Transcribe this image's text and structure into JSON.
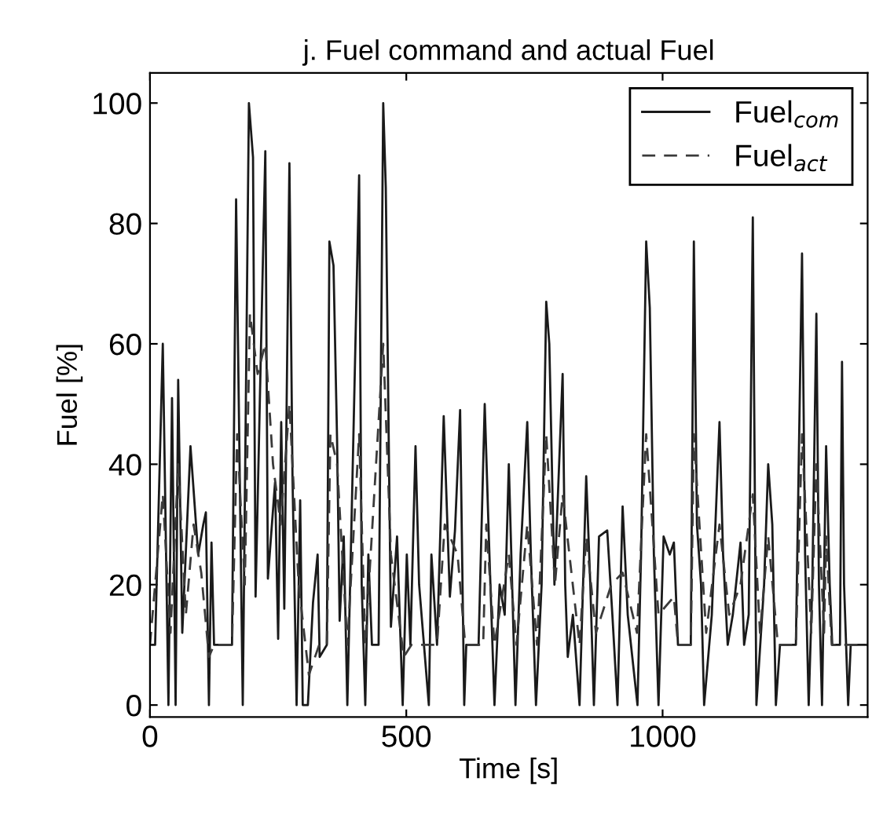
{
  "chart_data": {
    "type": "line",
    "title": "j. Fuel command and actual Fuel",
    "xlabel": "Time [s]",
    "ylabel": "Fuel [%]",
    "xlim": [
      0,
      1400
    ],
    "ylim": [
      -2,
      105
    ],
    "xticks": [
      0,
      500,
      1000
    ],
    "yticks": [
      0,
      20,
      40,
      60,
      80,
      100
    ],
    "grid": false,
    "legend": "top right",
    "marker": "none",
    "series": [
      {
        "name": "Fuel$_{com}$",
        "color": "#1a1a1a",
        "line_style": "solid",
        "x": [
          0,
          10,
          25,
          36,
          43,
          50,
          55,
          63,
          79,
          94,
          104,
          109,
          115,
          120,
          125,
          160,
          168,
          181,
          193,
          201,
          206,
          218,
          225,
          230,
          244,
          250,
          256,
          262,
          272,
          278,
          286,
          293,
          298,
          308,
          318,
          327,
          331,
          345,
          350,
          358,
          365,
          370,
          378,
          385,
          392,
          408,
          413,
          420,
          426,
          433,
          446,
          455,
          460,
          470,
          482,
          493,
          501,
          508,
          518,
          525,
          544,
          549,
          560,
          573,
          585,
          595,
          605,
          613,
          617,
          641,
          653,
          661,
          672,
          682,
          692,
          700,
          713,
          723,
          736,
          743,
          753,
          764,
          773,
          779,
          789,
          805,
          810,
          815,
          825,
          838,
          851,
          859,
          866,
          876,
          892,
          902,
          912,
          922,
          932,
          951,
          958,
          968,
          975,
          983,
          992,
          1002,
          1014,
          1022,
          1030,
          1055,
          1061,
          1067,
          1075,
          1081,
          1096,
          1111,
          1118,
          1127,
          1137,
          1152,
          1159,
          1168,
          1176,
          1183,
          1198,
          1206,
          1214,
          1221,
          1229,
          1260,
          1272,
          1278,
          1285,
          1292,
          1300,
          1305,
          1311,
          1319,
          1326,
          1331,
          1346,
          1350,
          1354,
          1362,
          1367,
          1372,
          1400
        ],
        "values": [
          10,
          10,
          60,
          0,
          51,
          0,
          54,
          12,
          43,
          25,
          30,
          32,
          0,
          27,
          10,
          10,
          84,
          0,
          100,
          91,
          18,
          65,
          92,
          21,
          37,
          11,
          47,
          16,
          90,
          38,
          0,
          34,
          0,
          0,
          17,
          25,
          8,
          10,
          77,
          73,
          44,
          14,
          28,
          0,
          26,
          88,
          20,
          0,
          25,
          10,
          10,
          100,
          86,
          13,
          28,
          0,
          25,
          10,
          43,
          20,
          0,
          25,
          10,
          48,
          18,
          29,
          49,
          0,
          10,
          10,
          50,
          28,
          0,
          20,
          15,
          40,
          0,
          25,
          47,
          25,
          0,
          20,
          67,
          60,
          20,
          55,
          20,
          8,
          15,
          0,
          38,
          20,
          0,
          28,
          29,
          15,
          0,
          33,
          15,
          0,
          25,
          77,
          66,
          25,
          0,
          28,
          25,
          27,
          10,
          10,
          77,
          30,
          20,
          0,
          15,
          47,
          25,
          10,
          15,
          27,
          10,
          15,
          81,
          0,
          20,
          40,
          30,
          0,
          10,
          10,
          75,
          25,
          0,
          20,
          65,
          20,
          0,
          43,
          20,
          10,
          10,
          57,
          20,
          0,
          10,
          10,
          10
        ]
      },
      {
        "name": "Fuel$_{act}$",
        "color": "#3a3a3a",
        "line_style": "dashed",
        "x": [
          0,
          25,
          40,
          55,
          70,
          85,
          100,
          115,
          125,
          160,
          170,
          185,
          195,
          210,
          225,
          240,
          255,
          272,
          290,
          310,
          330,
          345,
          352,
          365,
          385,
          408,
          420,
          455,
          470,
          495,
          510,
          560,
          575,
          600,
          615,
          650,
          656,
          672,
          700,
          715,
          736,
          755,
          773,
          790,
          805,
          838,
          851,
          870,
          900,
          922,
          950,
          968,
          992,
          1022,
          1030,
          1055,
          1061,
          1085,
          1111,
          1130,
          1152,
          1176,
          1190,
          1206,
          1225,
          1260,
          1272,
          1290,
          1300,
          1315,
          1319,
          1330,
          1357,
          1370,
          1400
        ],
        "values": [
          10,
          35,
          12,
          40,
          15,
          30,
          22,
          8,
          10,
          10,
          45,
          20,
          65,
          55,
          60,
          40,
          30,
          50,
          20,
          5,
          10,
          10,
          45,
          40,
          10,
          45,
          10,
          60,
          25,
          8,
          10,
          10,
          30,
          25,
          10,
          10,
          30,
          10,
          25,
          10,
          30,
          10,
          45,
          20,
          35,
          10,
          28,
          12,
          20,
          22,
          12,
          45,
          15,
          18,
          10,
          10,
          45,
          12,
          30,
          15,
          20,
          35,
          12,
          28,
          10,
          10,
          45,
          12,
          40,
          12,
          28,
          10,
          10,
          10,
          10
        ]
      }
    ]
  }
}
